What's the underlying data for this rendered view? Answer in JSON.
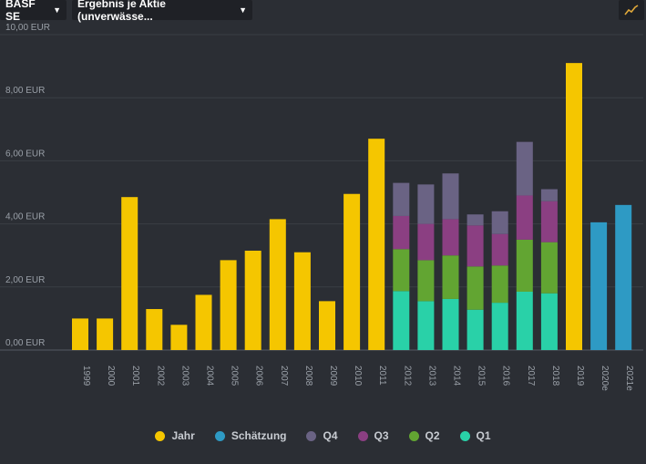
{
  "toolbar": {
    "company": "BASF SE",
    "metric": "Ergebnis je Aktie (unverwässe...",
    "chart_type_icon": "line-chart-icon"
  },
  "colors": {
    "jahr": "#f5c600",
    "schaetzung": "#2e9ac4",
    "q4": "#6a6384",
    "q3": "#8b3f82",
    "q2": "#62a532",
    "q1": "#29d1a8"
  },
  "legend": {
    "jahr": "Jahr",
    "schaetzung": "Schätzung",
    "q4": "Q4",
    "q3": "Q3",
    "q2": "Q2",
    "q1": "Q1"
  },
  "chart_data": {
    "type": "bar",
    "ylim": [
      0,
      10
    ],
    "y_ticks": [
      "0,00 EUR",
      "2,00 EUR",
      "4,00 EUR",
      "6,00 EUR",
      "8,00 EUR",
      "10,00 EUR"
    ],
    "grid": true,
    "legend_position": "bottom",
    "categories": [
      "1999",
      "2000",
      "2001",
      "2002",
      "2003",
      "2004",
      "2005",
      "2006",
      "2007",
      "2008",
      "2009",
      "2010",
      "2011",
      "2012",
      "2013",
      "2014",
      "2015",
      "2016",
      "2017",
      "2018",
      "2019",
      "2020e",
      "2021e"
    ],
    "annual": [
      1.0,
      1.0,
      4.85,
      1.3,
      0.8,
      1.75,
      2.85,
      3.15,
      4.15,
      3.1,
      1.55,
      4.95,
      6.7,
      null,
      null,
      null,
      null,
      null,
      null,
      null,
      9.1,
      null,
      null
    ],
    "estimate": [
      null,
      null,
      null,
      null,
      null,
      null,
      null,
      null,
      null,
      null,
      null,
      null,
      null,
      null,
      null,
      null,
      null,
      null,
      null,
      null,
      null,
      4.05,
      4.6
    ],
    "quarterly": {
      "q1": [
        null,
        null,
        null,
        null,
        null,
        null,
        null,
        null,
        null,
        null,
        null,
        null,
        null,
        1.87,
        1.55,
        1.62,
        1.28,
        1.5,
        1.85,
        1.8,
        null,
        null,
        null
      ],
      "q2": [
        null,
        null,
        null,
        null,
        null,
        null,
        null,
        null,
        null,
        null,
        null,
        null,
        null,
        1.33,
        1.3,
        1.38,
        1.37,
        1.18,
        1.65,
        1.62,
        null,
        null,
        null
      ],
      "q3": [
        null,
        null,
        null,
        null,
        null,
        null,
        null,
        null,
        null,
        null,
        null,
        null,
        null,
        1.05,
        1.15,
        1.15,
        1.3,
        1.0,
        1.4,
        1.3,
        null,
        null,
        null
      ],
      "q4": [
        null,
        null,
        null,
        null,
        null,
        null,
        null,
        null,
        null,
        null,
        null,
        null,
        null,
        1.05,
        1.25,
        1.45,
        0.35,
        0.72,
        1.7,
        0.38,
        null,
        null,
        null
      ]
    }
  }
}
